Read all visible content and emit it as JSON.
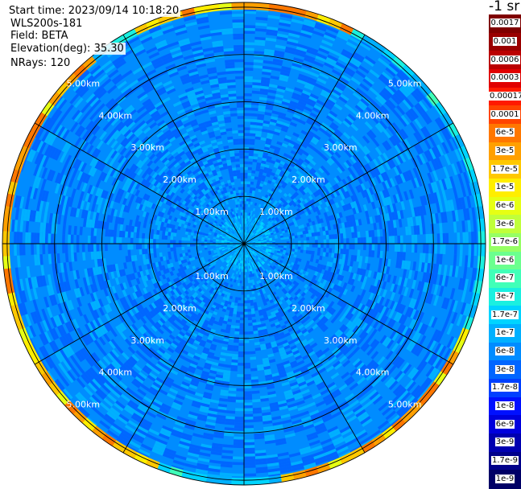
{
  "header": {
    "start_time_label": "Start time:",
    "start_time_value": "2023/09/14 10:18:20",
    "site": "WLS200s-181",
    "field_label": "Field:",
    "field_value": "BETA",
    "elevation_label": "Elevation(deg):",
    "elevation_value": "35.30",
    "nrays_label": "NRays:",
    "nrays_value": "120"
  },
  "colorbar": {
    "unit": "-1 sr",
    "entries": [
      {
        "label": "0.0017",
        "color": "#7f0000"
      },
      {
        "label": "0.001",
        "color": "#990000"
      },
      {
        "label": "0.0006",
        "color": "#bb0000"
      },
      {
        "label": "0.0003",
        "color": "#e00000"
      },
      {
        "label": "0.00017",
        "color": "#ff1a00"
      },
      {
        "label": "0.0001",
        "color": "#ff4400"
      },
      {
        "label": "6e-5",
        "color": "#ff7700"
      },
      {
        "label": "3e-5",
        "color": "#ffa000"
      },
      {
        "label": "1.7e-5",
        "color": "#ffc800"
      },
      {
        "label": "1e-5",
        "color": "#ffee00"
      },
      {
        "label": "6e-6",
        "color": "#e6ff14"
      },
      {
        "label": "3e-6",
        "color": "#c0ff3a"
      },
      {
        "label": "1.7e-6",
        "color": "#96ff64"
      },
      {
        "label": "1e-6",
        "color": "#6bff8e"
      },
      {
        "label": "6e-7",
        "color": "#40ffb8"
      },
      {
        "label": "3e-7",
        "color": "#1af0e0"
      },
      {
        "label": "1.7e-7",
        "color": "#00d4ff"
      },
      {
        "label": "1e-7",
        "color": "#00b0ff"
      },
      {
        "label": "6e-8",
        "color": "#008cff"
      },
      {
        "label": "3e-8",
        "color": "#0066ff"
      },
      {
        "label": "1.7e-8",
        "color": "#0040ff"
      },
      {
        "label": "1e-8",
        "color": "#0010ff"
      },
      {
        "label": "6e-9",
        "color": "#0000dd"
      },
      {
        "label": "3e-9",
        "color": "#0000b0"
      },
      {
        "label": "1.7e-9",
        "color": "#00008a"
      },
      {
        "label": "1e-9",
        "color": "#000066"
      }
    ]
  },
  "chart_data": {
    "type": "heatmap",
    "projection": "polar PPI",
    "field": "BETA",
    "nrays": 120,
    "range_ticks_km": [
      1.0,
      2.0,
      3.0,
      4.0,
      5.0
    ],
    "range_tick_labels": [
      "1.00km",
      "2.00km",
      "3.00km",
      "4.00km",
      "5.00km"
    ],
    "max_range_km": 5.1,
    "spoke_azimuths_deg": [
      0,
      30,
      60,
      90,
      120,
      150,
      180,
      210,
      240,
      270,
      300,
      330
    ],
    "ring_color": "#000000",
    "background_value": "6e-8",
    "value_bands": [
      {
        "range_km": [
          0.0,
          1.0
        ],
        "dominant": "6e-8",
        "notes": "lighter cyan speckle near center"
      },
      {
        "range_km": [
          1.0,
          4.9
        ],
        "dominant": "6e-8",
        "notes": "mix of 3e-8 and 1e-7"
      },
      {
        "range_km": [
          4.9,
          5.1
        ],
        "dominant": "1.7e-7",
        "notes": "outer rim reaching 3e-5 to 6e-5 in some sectors"
      }
    ]
  }
}
